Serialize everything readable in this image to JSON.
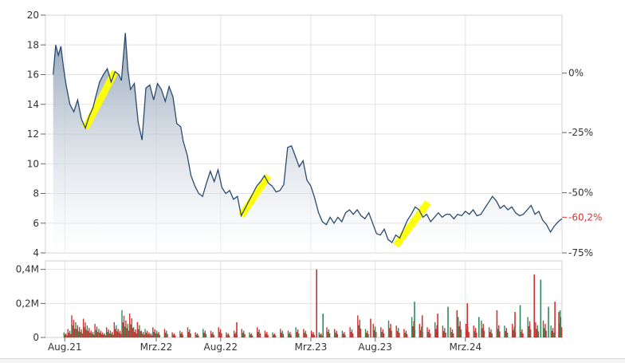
{
  "chart_data": [
    {
      "type": "area",
      "panel": "price",
      "grid": true,
      "ylim": [
        4,
        20
      ],
      "y_ticks": [
        "4",
        "6",
        "8",
        "10",
        "12",
        "14",
        "16",
        "18",
        "20"
      ],
      "right_axis": {
        "ticks": [
          "0%",
          "-25%",
          "-50%",
          "-75%"
        ],
        "tick_values": [
          16.1,
          12.1,
          8.05,
          4.0
        ],
        "current_label": "-60,2%",
        "current_value": 6.4,
        "current_color": "#e03030"
      },
      "x_ticks": [
        "Aug.21",
        "Mrz.22",
        "Aug.22",
        "Mrz.23",
        "Aug.23",
        "Mrz.24"
      ],
      "x_tick_positions": [
        0.9,
        8.0,
        13.0,
        20.0,
        25.0,
        32.0
      ],
      "xlim": [
        -0.6,
        39.5
      ],
      "line_color": "#2a4a6e",
      "fill_top_color": "#8da0b5",
      "highlight_color": "#ffff00",
      "series": [
        {
          "x": [
            0.0,
            0.2,
            0.4,
            0.6,
            0.8,
            1.0,
            1.3,
            1.6,
            1.9,
            2.2,
            2.5,
            2.8,
            3.1,
            3.3,
            3.6,
            3.9,
            4.2,
            4.5,
            4.8,
            5.1,
            5.3,
            5.6,
            5.8,
            6.0,
            6.3,
            6.6,
            6.9,
            7.2,
            7.5,
            7.8,
            8.1,
            8.4,
            8.7,
            9.0,
            9.3,
            9.6,
            9.9,
            10.1,
            10.4,
            10.7,
            11.0,
            11.3,
            11.6,
            11.9,
            12.2,
            12.5,
            12.8,
            13.1,
            13.4,
            13.7,
            14.0,
            14.3,
            14.6,
            14.9,
            15.2,
            15.5,
            15.8,
            16.1,
            16.4,
            16.7,
            17.0,
            17.3,
            17.6,
            17.9,
            18.2,
            18.5,
            18.8,
            19.1,
            19.4,
            19.7,
            20.0,
            20.3,
            20.6,
            20.9,
            21.2,
            21.5,
            21.8,
            22.1,
            22.4,
            22.7,
            23.0,
            23.3,
            23.6,
            23.9,
            24.2,
            24.5,
            24.8,
            25.1,
            25.4,
            25.7,
            26.0,
            26.3,
            26.6,
            26.9,
            27.2,
            27.5,
            27.8,
            28.1,
            28.4,
            28.7,
            29.0,
            29.3,
            29.6,
            29.9,
            30.2,
            30.5,
            30.8,
            31.1,
            31.4,
            31.7,
            32.0,
            32.3,
            32.6,
            32.9,
            33.2,
            33.5,
            33.8,
            34.1,
            34.4,
            34.7,
            35.0,
            35.3,
            35.6,
            35.9,
            36.2,
            36.5,
            36.8,
            37.1,
            37.4,
            37.7,
            38.0,
            38.3,
            38.6,
            38.9,
            39.2,
            39.5
          ],
          "values": [
            16.0,
            18.0,
            17.3,
            17.9,
            16.5,
            15.3,
            14.0,
            13.5,
            14.3,
            13.0,
            12.4,
            13.2,
            13.8,
            14.5,
            15.5,
            16.0,
            16.4,
            15.5,
            16.2,
            16.0,
            15.6,
            18.8,
            16.3,
            15.0,
            15.4,
            12.8,
            11.6,
            15.1,
            15.3,
            14.3,
            15.4,
            15.0,
            14.2,
            15.2,
            14.5,
            12.7,
            12.5,
            11.5,
            10.6,
            9.2,
            8.5,
            8.0,
            7.8,
            8.7,
            9.5,
            8.8,
            9.6,
            8.4,
            8.0,
            8.2,
            7.6,
            7.8,
            6.5,
            7.0,
            7.5,
            8.0,
            8.5,
            8.8,
            9.2,
            8.7,
            8.5,
            8.1,
            8.2,
            8.6,
            11.1,
            11.2,
            10.5,
            9.8,
            10.2,
            8.9,
            8.5,
            7.7,
            6.7,
            6.1,
            5.9,
            6.4,
            6.0,
            6.4,
            6.1,
            6.7,
            6.9,
            6.6,
            6.9,
            6.5,
            6.3,
            6.7,
            6.0,
            5.3,
            5.2,
            5.6,
            4.9,
            4.7,
            5.2,
            5.0,
            5.6,
            6.2,
            6.6,
            7.1,
            6.9,
            6.4,
            6.6,
            6.1,
            6.4,
            6.7,
            6.4,
            6.6,
            6.6,
            6.3,
            6.6,
            6.5,
            6.8,
            6.6,
            6.9,
            6.5,
            6.6,
            7.0,
            7.4,
            7.8,
            7.5,
            7.0,
            7.2,
            6.9,
            7.1,
            6.7,
            6.5,
            6.6,
            6.9,
            7.2,
            6.6,
            6.8,
            6.2,
            5.9,
            5.4,
            5.8,
            6.1,
            6.3
          ]
        }
      ],
      "highlights": [
        {
          "x": [
            2.5,
            4.8
          ],
          "y": [
            12.4,
            16.2
          ]
        },
        {
          "x": [
            14.6,
            16.7
          ],
          "y": [
            6.5,
            9.2
          ]
        },
        {
          "x": [
            26.6,
            29.1
          ],
          "y": [
            4.5,
            7.4
          ]
        }
      ]
    },
    {
      "type": "bar",
      "panel": "volume",
      "grid": true,
      "ylim": [
        0,
        0.45
      ],
      "y_ticks": [
        "0",
        "0,2M",
        "0,4M"
      ],
      "y_tick_values": [
        0,
        0.2,
        0.4
      ],
      "up_color": "#2e8b57",
      "down_color": "#cc3333",
      "series": [
        {
          "name": "",
          "x": [
            0.8,
            1.1,
            1.4,
            1.7,
            2.0,
            2.3,
            2.6,
            2.9,
            3.2,
            3.5,
            3.8,
            4.1,
            4.4,
            4.7,
            5.0,
            5.3,
            5.6,
            5.9,
            6.2,
            6.5,
            6.8,
            7.1,
            7.4,
            7.7,
            8.0,
            8.6,
            9.2,
            9.8,
            10.4,
            11.0,
            11.6,
            12.2,
            12.8,
            13.4,
            14.0,
            14.6,
            15.2,
            15.8,
            16.4,
            17.0,
            17.6,
            18.2,
            18.8,
            19.4,
            20.0,
            20.6,
            21.2,
            21.8,
            22.4,
            23.0,
            23.6,
            24.2,
            24.8,
            25.4,
            26.0,
            26.6,
            27.2,
            27.8,
            28.4,
            29.0,
            29.6,
            30.2,
            30.8,
            31.4,
            32.0,
            32.6,
            33.2,
            33.8,
            34.4,
            35.0,
            35.6,
            36.2,
            36.8,
            37.4,
            38.0,
            38.6,
            39.2
          ],
          "values": [
            0.03,
            0.05,
            0.13,
            0.09,
            0.06,
            0.11,
            0.07,
            0.04,
            0.08,
            0.05,
            0.03,
            0.06,
            0.04,
            0.09,
            0.05,
            0.16,
            0.1,
            0.14,
            0.06,
            0.09,
            0.04,
            0.05,
            0.03,
            0.06,
            0.04,
            0.05,
            0.03,
            0.04,
            0.06,
            0.03,
            0.05,
            0.04,
            0.06,
            0.03,
            0.04,
            0.05,
            0.03,
            0.06,
            0.04,
            0.03,
            0.05,
            0.04,
            0.06,
            0.05,
            0.04,
            0.03,
            0.06,
            0.05,
            0.04,
            0.06,
            0.13,
            0.05,
            0.08,
            0.06,
            0.1,
            0.07,
            0.05,
            0.12,
            0.08,
            0.06,
            0.09,
            0.07,
            0.06,
            0.12,
            0.08,
            0.07,
            0.1,
            0.06,
            0.09,
            0.07,
            0.08,
            0.06,
            0.12,
            0.09,
            0.1,
            0.07,
            0.15
          ]
        }
      ],
      "spikes": [
        {
          "x": 20.4,
          "value": 0.4,
          "dir": "down"
        },
        {
          "x": 20.9,
          "value": 0.14,
          "dir": "up"
        },
        {
          "x": 24.6,
          "value": 0.11,
          "dir": "down"
        },
        {
          "x": 28.0,
          "value": 0.21,
          "dir": "up"
        },
        {
          "x": 28.6,
          "value": 0.13,
          "dir": "down"
        },
        {
          "x": 29.8,
          "value": 0.14,
          "dir": "down"
        },
        {
          "x": 30.6,
          "value": 0.18,
          "dir": "up"
        },
        {
          "x": 31.3,
          "value": 0.16,
          "dir": "down"
        },
        {
          "x": 32.1,
          "value": 0.2,
          "dir": "down"
        },
        {
          "x": 33.0,
          "value": 0.12,
          "dir": "up"
        },
        {
          "x": 34.4,
          "value": 0.16,
          "dir": "down"
        },
        {
          "x": 35.8,
          "value": 0.15,
          "dir": "down"
        },
        {
          "x": 36.2,
          "value": 0.19,
          "dir": "up"
        },
        {
          "x": 37.3,
          "value": 0.37,
          "dir": "down"
        },
        {
          "x": 37.8,
          "value": 0.34,
          "dir": "up"
        },
        {
          "x": 38.4,
          "value": 0.18,
          "dir": "up"
        },
        {
          "x": 38.9,
          "value": 0.21,
          "dir": "down"
        },
        {
          "x": 39.3,
          "value": 0.16,
          "dir": "up"
        },
        {
          "x": 14.2,
          "value": 0.09,
          "dir": "down"
        }
      ]
    }
  ]
}
